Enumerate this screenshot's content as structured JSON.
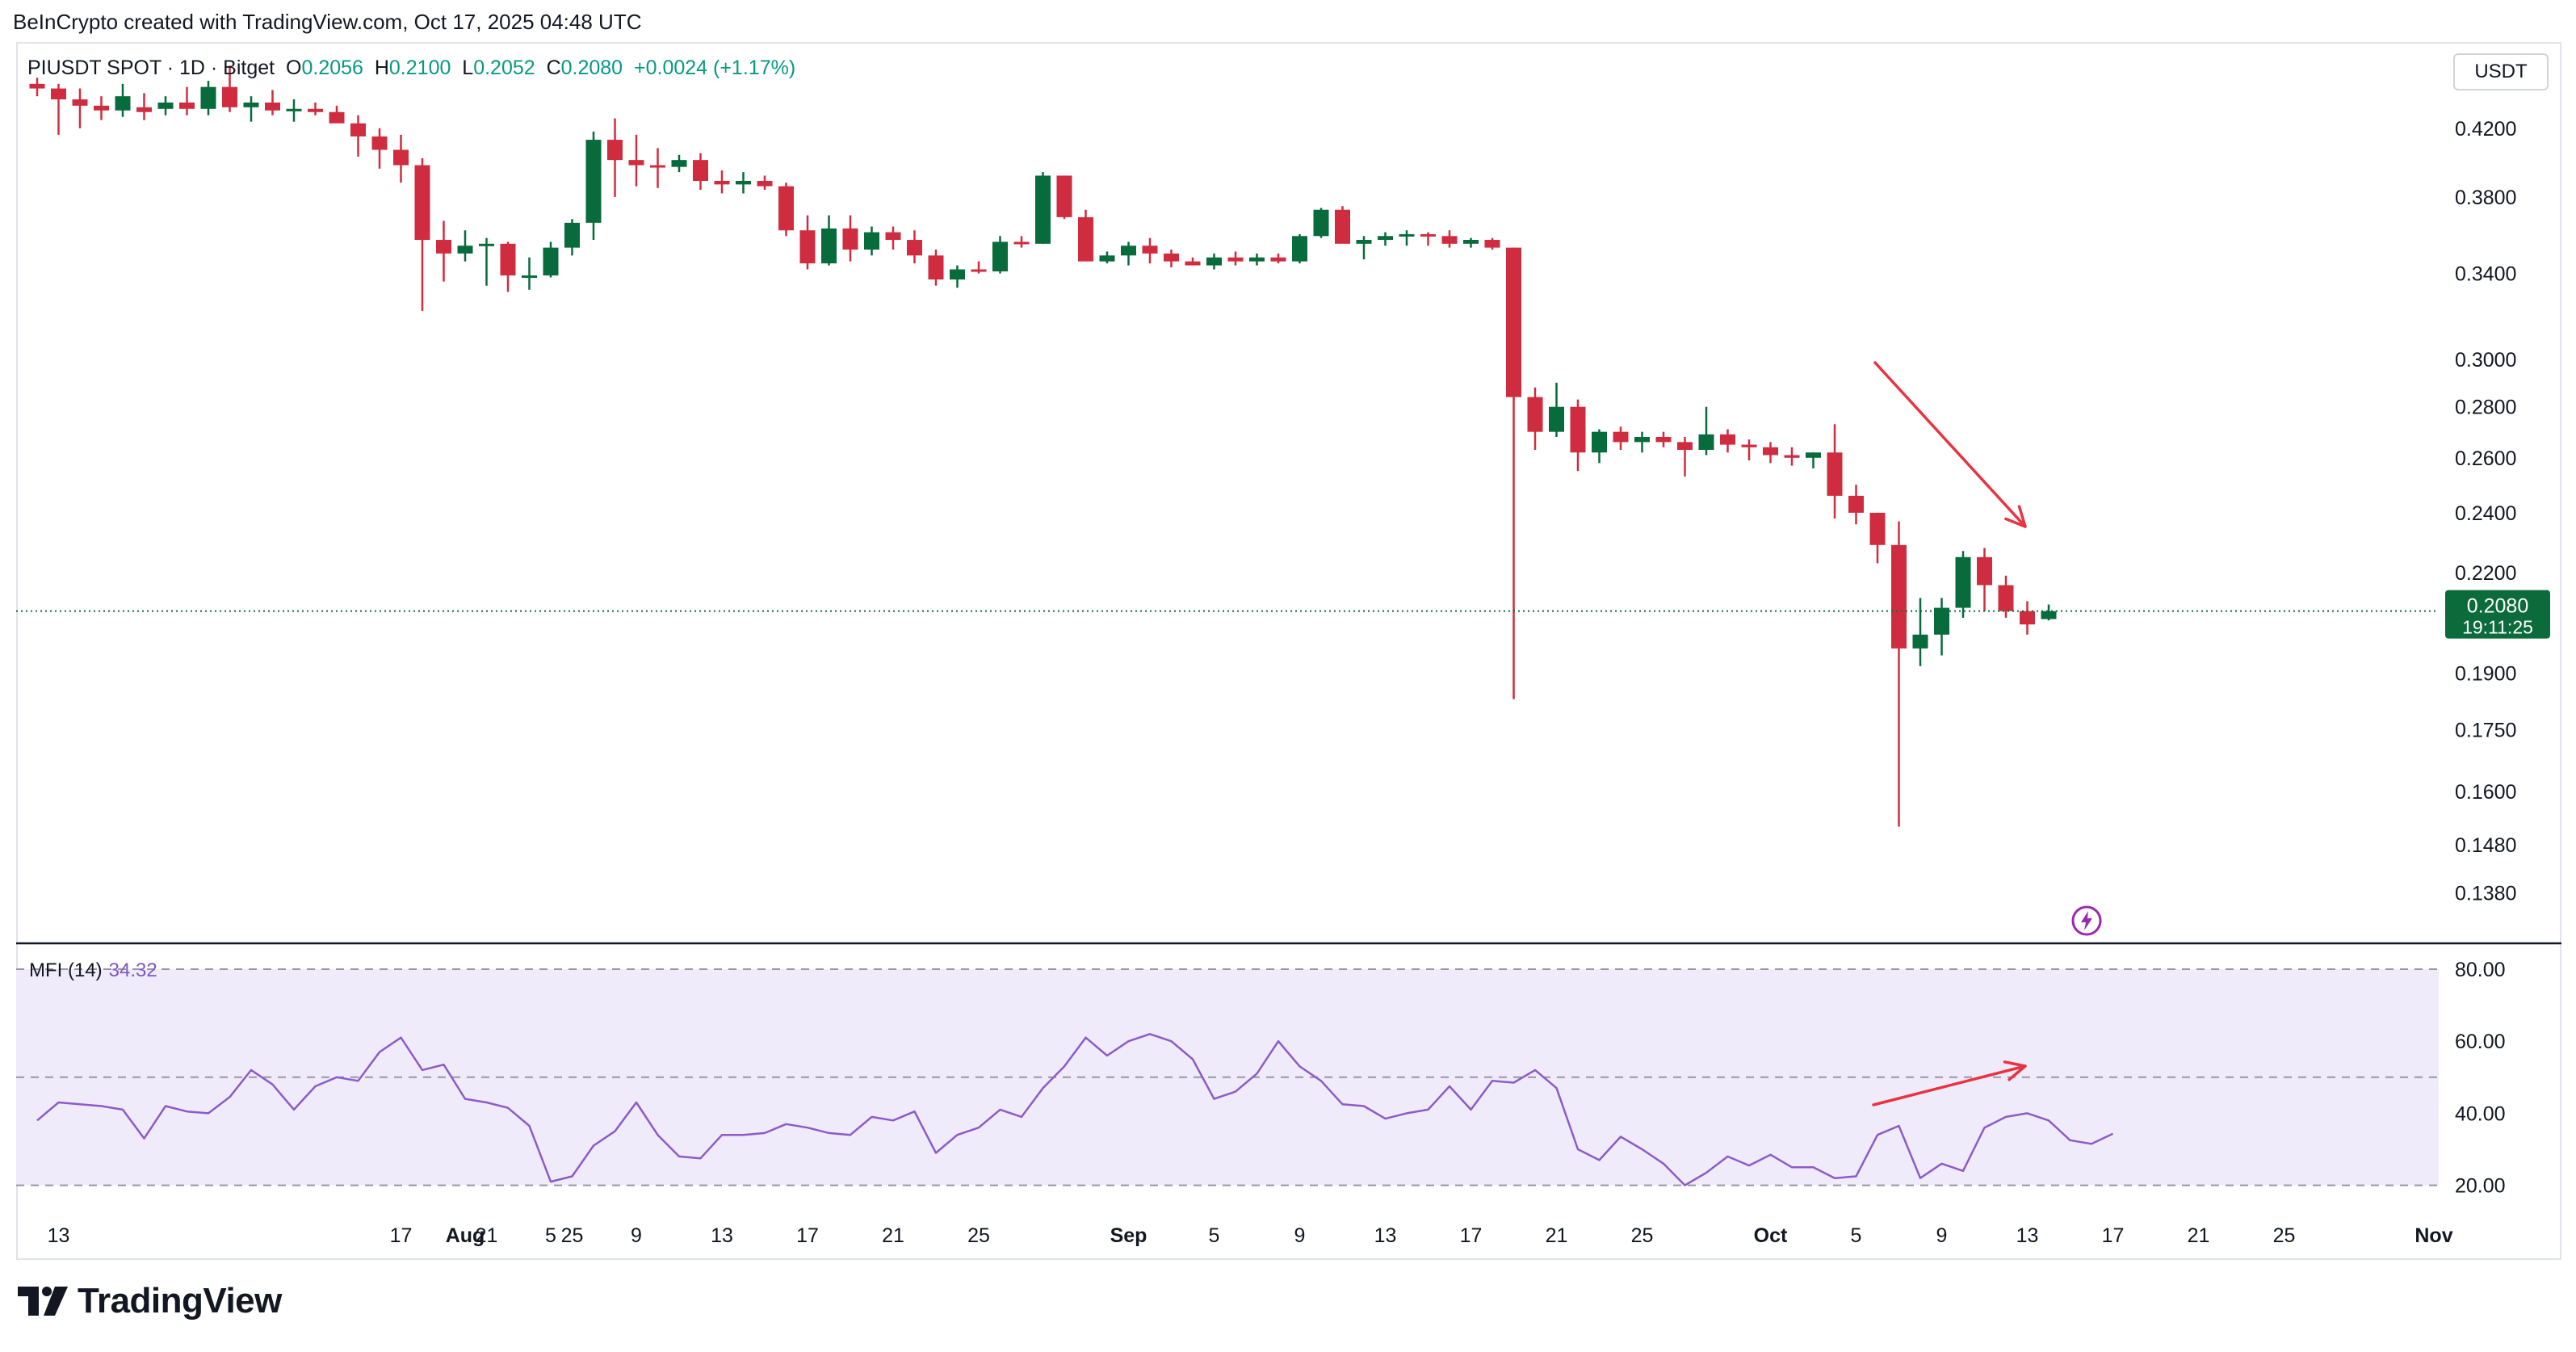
{
  "header": {
    "created_by": "BeInCrypto created with TradingView.com, Oct 17, 2025 04:48 UTC"
  },
  "symbol": {
    "name": "PIUSDT SPOT · 1D · Bitget",
    "o_label": "O",
    "o_value": "0.2056",
    "h_label": "H",
    "h_value": "0.2100",
    "l_label": "L",
    "l_value": "0.2052",
    "c_label": "C",
    "c_value": "0.2080",
    "change": "+0.0024 (+1.17%)"
  },
  "currency": "USDT",
  "price_badge": {
    "price": "0.2080",
    "countdown": "19:11:25"
  },
  "mfi": {
    "label": "MFI (14)",
    "value": "34.32"
  },
  "brand": {
    "name": "TradingView",
    "icon": "tradingview-logo-icon"
  },
  "icons": {
    "lightning": "lightning-icon"
  },
  "colors": {
    "up": "#076b3c",
    "down": "#cf2d3f",
    "mfi_line": "#8b5cc8",
    "mfi_fill": "#f0ebfa",
    "arrow": "#e83341",
    "last_price": "#0b6b3a"
  },
  "chart_data": [
    {
      "type": "candlestick",
      "title": "",
      "scale": "log",
      "ylim": [
        0.134,
        0.44
      ],
      "y_ticks": [
        "0.4200",
        "0.3800",
        "0.3400",
        "0.3000",
        "0.2800",
        "0.2600",
        "0.2400",
        "0.2200",
        "0.1900",
        "0.1750",
        "0.1600",
        "0.1480",
        "0.1380"
      ],
      "x_ticks": [
        "13",
        "17",
        "21",
        "25",
        "Aug",
        "5",
        "9",
        "13",
        "17",
        "21",
        "25",
        "Sep",
        "5",
        "9",
        "13",
        "17",
        "21",
        "25",
        "Oct",
        "5",
        "9",
        "13",
        "17",
        "21",
        "25",
        "Nov"
      ],
      "x_start": "2025-07-12",
      "last_price": 0.208,
      "candles": [
        [
          0.448,
          0.452,
          0.44,
          0.445
        ],
        [
          0.445,
          0.448,
          0.416,
          0.438
        ],
        [
          0.438,
          0.445,
          0.42,
          0.434
        ],
        [
          0.434,
          0.44,
          0.425,
          0.431
        ],
        [
          0.431,
          0.448,
          0.427,
          0.44
        ],
        [
          0.433,
          0.442,
          0.425,
          0.43
        ],
        [
          0.432,
          0.44,
          0.428,
          0.436
        ],
        [
          0.436,
          0.446,
          0.428,
          0.432
        ],
        [
          0.432,
          0.45,
          0.428,
          0.446
        ],
        [
          0.446,
          0.46,
          0.43,
          0.433
        ],
        [
          0.433,
          0.44,
          0.424,
          0.436
        ],
        [
          0.436,
          0.444,
          0.428,
          0.431
        ],
        [
          0.431,
          0.438,
          0.424,
          0.432
        ],
        [
          0.432,
          0.436,
          0.428,
          0.43
        ],
        [
          0.43,
          0.434,
          0.424,
          0.423
        ],
        [
          0.423,
          0.428,
          0.403,
          0.415
        ],
        [
          0.415,
          0.42,
          0.396,
          0.407
        ],
        [
          0.407,
          0.416,
          0.388,
          0.398
        ],
        [
          0.398,
          0.402,
          0.322,
          0.357
        ],
        [
          0.357,
          0.367,
          0.336,
          0.35
        ],
        [
          0.35,
          0.362,
          0.346,
          0.354
        ],
        [
          0.354,
          0.358,
          0.334,
          0.355
        ],
        [
          0.355,
          0.356,
          0.331,
          0.339
        ],
        [
          0.339,
          0.348,
          0.332,
          0.339
        ],
        [
          0.339,
          0.356,
          0.338,
          0.353
        ],
        [
          0.353,
          0.368,
          0.349,
          0.366
        ],
        [
          0.366,
          0.418,
          0.357,
          0.413
        ],
        [
          0.413,
          0.426,
          0.38,
          0.401
        ],
        [
          0.401,
          0.416,
          0.386,
          0.398
        ],
        [
          0.398,
          0.408,
          0.385,
          0.397
        ],
        [
          0.397,
          0.404,
          0.394,
          0.401
        ],
        [
          0.401,
          0.405,
          0.384,
          0.389
        ],
        [
          0.389,
          0.395,
          0.382,
          0.387
        ],
        [
          0.387,
          0.394,
          0.382,
          0.389
        ],
        [
          0.389,
          0.392,
          0.384,
          0.386
        ],
        [
          0.386,
          0.388,
          0.359,
          0.362
        ],
        [
          0.362,
          0.37,
          0.342,
          0.345
        ],
        [
          0.345,
          0.37,
          0.344,
          0.363
        ],
        [
          0.363,
          0.37,
          0.346,
          0.352
        ],
        [
          0.352,
          0.364,
          0.349,
          0.361
        ],
        [
          0.361,
          0.364,
          0.352,
          0.357
        ],
        [
          0.357,
          0.362,
          0.345,
          0.349
        ],
        [
          0.349,
          0.352,
          0.334,
          0.337
        ],
        [
          0.337,
          0.344,
          0.333,
          0.342
        ],
        [
          0.342,
          0.346,
          0.34,
          0.341
        ],
        [
          0.341,
          0.359,
          0.34,
          0.356
        ],
        [
          0.356,
          0.359,
          0.353,
          0.355
        ],
        [
          0.355,
          0.394,
          0.355,
          0.392
        ],
        [
          0.392,
          0.392,
          0.368,
          0.369
        ],
        [
          0.369,
          0.373,
          0.348,
          0.346
        ],
        [
          0.346,
          0.351,
          0.345,
          0.349
        ],
        [
          0.349,
          0.356,
          0.344,
          0.354
        ],
        [
          0.354,
          0.358,
          0.345,
          0.35
        ],
        [
          0.35,
          0.352,
          0.343,
          0.346
        ],
        [
          0.346,
          0.348,
          0.344,
          0.344
        ],
        [
          0.344,
          0.35,
          0.342,
          0.348
        ],
        [
          0.348,
          0.351,
          0.344,
          0.346
        ],
        [
          0.346,
          0.35,
          0.344,
          0.348
        ],
        [
          0.348,
          0.35,
          0.345,
          0.346
        ],
        [
          0.346,
          0.36,
          0.345,
          0.359
        ],
        [
          0.359,
          0.374,
          0.358,
          0.373
        ],
        [
          0.373,
          0.375,
          0.356,
          0.355
        ],
        [
          0.355,
          0.359,
          0.347,
          0.357
        ],
        [
          0.357,
          0.361,
          0.354,
          0.359
        ],
        [
          0.359,
          0.362,
          0.354,
          0.36
        ],
        [
          0.36,
          0.361,
          0.354,
          0.359
        ],
        [
          0.359,
          0.362,
          0.353,
          0.355
        ],
        [
          0.355,
          0.358,
          0.353,
          0.357
        ],
        [
          0.357,
          0.358,
          0.352,
          0.353
        ],
        [
          0.353,
          0.353,
          0.183,
          0.284
        ],
        [
          0.284,
          0.288,
          0.263,
          0.27
        ],
        [
          0.27,
          0.29,
          0.268,
          0.28
        ],
        [
          0.28,
          0.283,
          0.255,
          0.262
        ],
        [
          0.262,
          0.271,
          0.258,
          0.27
        ],
        [
          0.27,
          0.272,
          0.263,
          0.266
        ],
        [
          0.266,
          0.27,
          0.262,
          0.268
        ],
        [
          0.268,
          0.27,
          0.264,
          0.266
        ],
        [
          0.266,
          0.268,
          0.253,
          0.263
        ],
        [
          0.263,
          0.28,
          0.261,
          0.269
        ],
        [
          0.269,
          0.271,
          0.262,
          0.265
        ],
        [
          0.265,
          0.267,
          0.259,
          0.264
        ],
        [
          0.264,
          0.266,
          0.258,
          0.261
        ],
        [
          0.261,
          0.264,
          0.257,
          0.26
        ],
        [
          0.26,
          0.262,
          0.256,
          0.262
        ],
        [
          0.262,
          0.273,
          0.238,
          0.246
        ],
        [
          0.246,
          0.25,
          0.236,
          0.24
        ],
        [
          0.24,
          0.24,
          0.223,
          0.229
        ],
        [
          0.229,
          0.237,
          0.152,
          0.197
        ],
        [
          0.197,
          0.212,
          0.192,
          0.201
        ],
        [
          0.201,
          0.212,
          0.195,
          0.209
        ],
        [
          0.209,
          0.227,
          0.206,
          0.225
        ],
        [
          0.225,
          0.228,
          0.208,
          0.216
        ],
        [
          0.216,
          0.219,
          0.206,
          0.208
        ],
        [
          0.208,
          0.211,
          0.201,
          0.204
        ],
        [
          0.2056,
          0.21,
          0.2052,
          0.208
        ]
      ]
    },
    {
      "type": "line",
      "title": "MFI (14)",
      "ylim": [
        15,
        85
      ],
      "y_ticks": [
        "80.00",
        "60.00",
        "40.00",
        "20.00"
      ],
      "bands": [
        20,
        50,
        80
      ],
      "x_start": "2025-07-12",
      "series": [
        {
          "name": "MFI (14)",
          "values": [
            38,
            43,
            42.5,
            42,
            41,
            33,
            42,
            40.5,
            40,
            44.5,
            52,
            48,
            41,
            47.5,
            50,
            49,
            57,
            61,
            52,
            53.5,
            44,
            43,
            41.5,
            36.5,
            21,
            22.5,
            31,
            35,
            43,
            34,
            28,
            27.5,
            34,
            34,
            34.5,
            37,
            36,
            34.5,
            34,
            39,
            38,
            40.5,
            29,
            34,
            36,
            41,
            39,
            47,
            53,
            61,
            56,
            60,
            62,
            60,
            55,
            44,
            46,
            51,
            60,
            53,
            49,
            42.5,
            42,
            38.5,
            40,
            41,
            47.5,
            41,
            49,
            48.5,
            52,
            47,
            30,
            27,
            33.5,
            30,
            26,
            20,
            23.5,
            28,
            25.5,
            28.5,
            25,
            25,
            22,
            22.5,
            34,
            36.5,
            22,
            26,
            24,
            36,
            39,
            40,
            38,
            32.5,
            31.5,
            34.32
          ]
        }
      ]
    }
  ]
}
